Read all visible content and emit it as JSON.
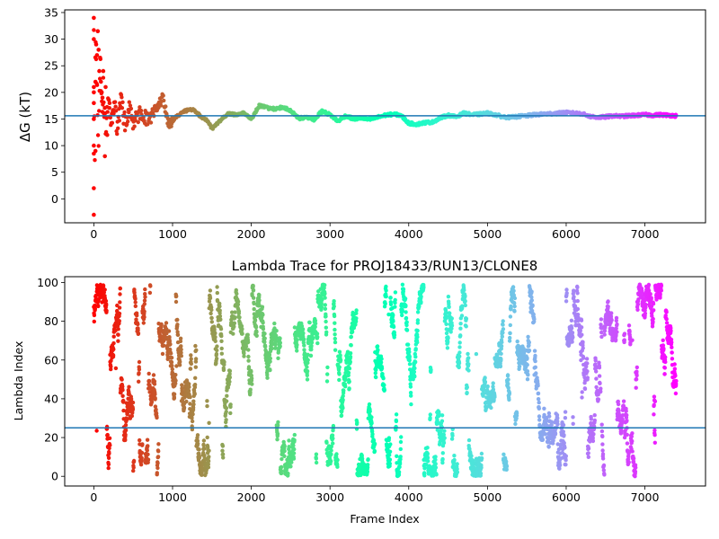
{
  "chart_data": [
    {
      "type": "scatter",
      "title": "",
      "xlabel": "",
      "ylabel": "ΔG (kT)",
      "xlim": [
        -370,
        7770
      ],
      "ylim": [
        -4.5,
        35.5
      ],
      "xticks": [
        0,
        1000,
        2000,
        3000,
        4000,
        5000,
        6000,
        7000
      ],
      "yticks": [
        0,
        5,
        10,
        15,
        20,
        25,
        30,
        35
      ],
      "hline": 15.6,
      "hline_color": "#1f77b4",
      "colormap": "rainbow",
      "x_max": 7400,
      "trace": [
        [
          0,
          34
        ],
        [
          10,
          2
        ],
        [
          20,
          30
        ],
        [
          40,
          22
        ],
        [
          60,
          10
        ],
        [
          80,
          26
        ],
        [
          100,
          17
        ],
        [
          120,
          21
        ],
        [
          150,
          12
        ],
        [
          180,
          19
        ],
        [
          220,
          14
        ],
        [
          260,
          17.5
        ],
        [
          300,
          13
        ],
        [
          350,
          19
        ],
        [
          400,
          13.5
        ],
        [
          450,
          17
        ],
        [
          500,
          14.5
        ],
        [
          600,
          16.5
        ],
        [
          700,
          14.5
        ],
        [
          800,
          17.5
        ],
        [
          880,
          19
        ],
        [
          950,
          13.8
        ],
        [
          1050,
          15.5
        ],
        [
          1150,
          16.5
        ],
        [
          1250,
          16.8
        ],
        [
          1350,
          15.6
        ],
        [
          1450,
          14.6
        ],
        [
          1500,
          13.2
        ],
        [
          1600,
          14.6
        ],
        [
          1700,
          16
        ],
        [
          1800,
          15.8
        ],
        [
          1900,
          16.2
        ],
        [
          2000,
          15
        ],
        [
          2100,
          17.5
        ],
        [
          2200,
          17.1
        ],
        [
          2300,
          16.9
        ],
        [
          2400,
          17.2
        ],
        [
          2500,
          16.6
        ],
        [
          2600,
          15.1
        ],
        [
          2700,
          15.3
        ],
        [
          2800,
          14.9
        ],
        [
          2900,
          16.5
        ],
        [
          3000,
          15.8
        ],
        [
          3100,
          14.6
        ],
        [
          3200,
          15.6
        ],
        [
          3300,
          15
        ],
        [
          3400,
          15.2
        ],
        [
          3500,
          14.9
        ],
        [
          3600,
          15.3
        ],
        [
          3700,
          15.7
        ],
        [
          3800,
          15.9
        ],
        [
          3900,
          15.7
        ],
        [
          4000,
          14.2
        ],
        [
          4100,
          14
        ],
        [
          4200,
          14.3
        ],
        [
          4300,
          14.4
        ],
        [
          4400,
          15.2
        ],
        [
          4500,
          15.7
        ],
        [
          4600,
          15.4
        ],
        [
          4700,
          16.1
        ],
        [
          4800,
          15.8
        ],
        [
          4900,
          15.9
        ],
        [
          5000,
          16.1
        ],
        [
          5100,
          15.8
        ],
        [
          5200,
          15.4
        ],
        [
          5300,
          15.3
        ],
        [
          5400,
          15.5
        ],
        [
          5500,
          15.6
        ],
        [
          5600,
          15.8
        ],
        [
          5700,
          15.9
        ],
        [
          5800,
          16
        ],
        [
          5900,
          16.1
        ],
        [
          6000,
          16.2
        ],
        [
          6100,
          16.1
        ],
        [
          6200,
          16
        ],
        [
          6300,
          15.5
        ],
        [
          6400,
          15.3
        ],
        [
          6500,
          15.4
        ],
        [
          6600,
          15.6
        ],
        [
          6700,
          15.5
        ],
        [
          6800,
          15.6
        ],
        [
          6900,
          15.7
        ],
        [
          7000,
          15.8
        ],
        [
          7100,
          15.7
        ],
        [
          7200,
          15.8
        ],
        [
          7300,
          15.7
        ],
        [
          7400,
          15.6
        ]
      ],
      "early_points": [
        [
          0,
          34
        ],
        [
          0,
          30
        ],
        [
          0,
          21
        ],
        [
          0,
          20
        ],
        [
          0,
          18
        ],
        [
          0,
          15
        ],
        [
          0,
          10
        ],
        [
          0,
          8.5
        ],
        [
          0,
          2
        ],
        [
          0,
          -3
        ],
        [
          20,
          22
        ],
        [
          20,
          9
        ],
        [
          30,
          29
        ],
        [
          40,
          27
        ],
        [
          50,
          31.5
        ],
        [
          60,
          28
        ],
        [
          70,
          24
        ],
        [
          80,
          26.5
        ],
        [
          90,
          22
        ],
        [
          100,
          20
        ],
        [
          110,
          19
        ],
        [
          120,
          24
        ],
        [
          130,
          16
        ],
        [
          140,
          8
        ],
        [
          150,
          21
        ],
        [
          170,
          12
        ],
        [
          200,
          18
        ]
      ]
    },
    {
      "type": "scatter",
      "title": "Lambda Trace for PROJ18433/RUN13/CLONE8",
      "xlabel": "Frame Index",
      "ylabel": "Lambda Index",
      "xlim": [
        -370,
        7770
      ],
      "ylim": [
        -5,
        103
      ],
      "xticks": [
        0,
        1000,
        2000,
        3000,
        4000,
        5000,
        6000,
        7000
      ],
      "yticks": [
        0,
        20,
        40,
        60,
        80,
        100
      ],
      "hline": 25,
      "hline_color": "#1f77b4",
      "colormap": "rainbow",
      "x_max": 7400,
      "n_points": 7400,
      "lambda_min": 0,
      "lambda_max": 99
    }
  ]
}
